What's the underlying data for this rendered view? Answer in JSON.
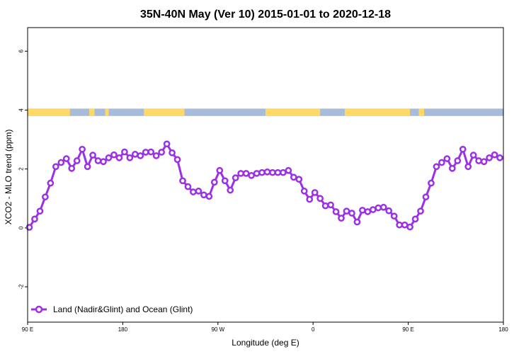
{
  "chart_data": {
    "type": "line",
    "title": "35N-40N May (Ver 10)   2015-01-01 to 2020-12-18",
    "xlabel": "Longitude (deg E)",
    "ylabel": "XCO2 - MLO trend (ppm)",
    "xlim": [
      -90,
      180
    ],
    "ylim": [
      -3.2,
      6.8
    ],
    "x_ticks": [
      {
        "value": -90,
        "label": "90 E"
      },
      {
        "value": -36,
        "label": "180"
      },
      {
        "value": 18,
        "label": "90 W"
      },
      {
        "value": 72,
        "label": "0"
      },
      {
        "value": 126,
        "label": "90 E"
      },
      {
        "value": 180,
        "label": "180"
      }
    ],
    "y_ticks": [
      {
        "value": -2,
        "label": "-2"
      },
      {
        "value": 0,
        "label": "0"
      },
      {
        "value": 2,
        "label": "2"
      },
      {
        "value": 4,
        "label": "4"
      },
      {
        "value": 6,
        "label": "6"
      }
    ],
    "grid": false,
    "legend_position": "bottom-left",
    "land_ocean_strip": {
      "y_range": [
        3.8,
        4.05
      ],
      "land_color": "#FFD966",
      "ocean_color": "#A7BCDA",
      "land_segments": [
        [
          -90,
          -66
        ],
        [
          -55,
          -52
        ],
        [
          -46,
          -44
        ],
        [
          -24,
          -1
        ],
        [
          45,
          76
        ],
        [
          90,
          127
        ],
        [
          132,
          135
        ]
      ]
    },
    "series": [
      {
        "name": "Land (Nadir&Glint) and Ocean (Glint)",
        "color": "#9B30E6",
        "x": [
          -89,
          -86,
          -83,
          -80,
          -77,
          -74,
          -71,
          -68,
          -65,
          -62,
          -59,
          -56,
          -53,
          -50,
          -47,
          -44,
          -41,
          -38,
          -35,
          -32,
          -29,
          -26,
          -23,
          -20,
          -17,
          -14,
          -11,
          -8,
          -5,
          -2,
          1,
          4,
          7,
          10,
          13,
          16,
          19,
          22,
          25,
          28,
          31,
          34,
          37,
          40,
          43,
          46,
          49,
          52,
          55,
          58,
          61,
          64,
          67,
          70,
          73,
          76,
          79,
          82,
          85,
          88,
          91,
          94,
          97,
          100,
          103,
          106,
          109,
          112,
          115,
          118,
          121,
          124,
          127,
          130,
          133,
          136,
          139,
          142,
          145,
          148,
          151,
          154,
          157,
          160,
          163,
          166,
          169,
          172,
          175,
          178
        ],
        "y": [
          0.02,
          0.3,
          0.57,
          1.05,
          1.52,
          2.08,
          2.22,
          2.35,
          2.02,
          2.28,
          2.67,
          2.08,
          2.47,
          2.28,
          2.25,
          2.38,
          2.48,
          2.38,
          2.58,
          2.38,
          2.5,
          2.45,
          2.57,
          2.58,
          2.45,
          2.57,
          2.85,
          2.55,
          2.32,
          1.6,
          1.4,
          1.22,
          1.25,
          1.12,
          1.07,
          1.55,
          1.95,
          1.6,
          1.28,
          1.7,
          1.85,
          1.85,
          1.78,
          1.85,
          1.88,
          1.9,
          1.88,
          1.88,
          1.88,
          1.95,
          1.72,
          1.65,
          1.25,
          0.97,
          1.2,
          1.0,
          0.75,
          0.78,
          0.55,
          0.33,
          0.57,
          0.5,
          0.2,
          0.6,
          0.55,
          0.62,
          0.68,
          0.7,
          0.58,
          0.4,
          0.1,
          0.1,
          0.03,
          0.3,
          0.57,
          1.05,
          1.52,
          2.08,
          2.22,
          2.35,
          2.02,
          2.28,
          2.67,
          2.08,
          2.47,
          2.28,
          2.25,
          2.38,
          2.48,
          2.38
        ]
      }
    ]
  }
}
